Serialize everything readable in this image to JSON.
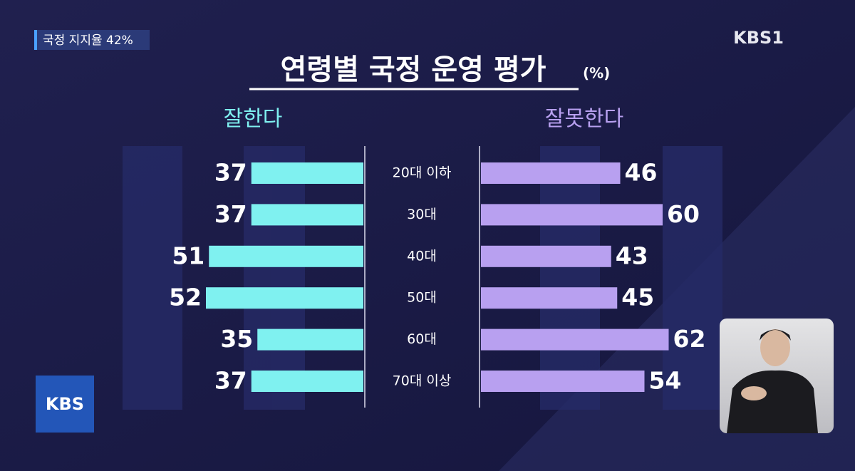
{
  "badge": "국정 지지율 42%",
  "logo_top": "KBS1",
  "logo_bottom": "KBS",
  "chart_data": {
    "type": "butterfly",
    "title": "연령별 국정 운영 평가",
    "unit": "(%)",
    "categories": [
      "20대 이하",
      "30대",
      "40대",
      "50대",
      "60대",
      "70대 이상"
    ],
    "series": [
      {
        "name": "잘한다",
        "color": "#7ff1f0",
        "values": [
          37,
          37,
          51,
          52,
          35,
          37
        ]
      },
      {
        "name": "잘못한다",
        "color": "#b8a0f0",
        "values": [
          46,
          60,
          43,
          45,
          62,
          54
        ]
      }
    ]
  }
}
